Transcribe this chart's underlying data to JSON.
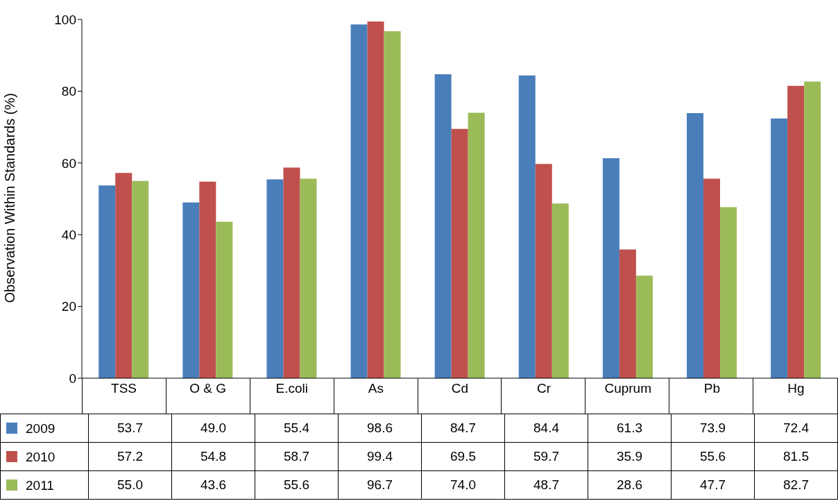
{
  "chart_data": {
    "type": "bar",
    "ylabel": "Observation Within Standards (%)",
    "categories": [
      "TSS",
      "O & G",
      "E.coli",
      "As",
      "Cd",
      "Cr",
      "Cuprum",
      "Pb",
      "Hg"
    ],
    "series": [
      {
        "name": "2009",
        "color": "#4a7ebb",
        "values": [
          53.7,
          49.0,
          55.4,
          98.6,
          84.7,
          84.4,
          61.3,
          73.9,
          72.4
        ],
        "value_labels": [
          "53.7",
          "49.0",
          "55.4",
          "98.6",
          "84.7",
          "84.4",
          "61.3",
          "73.9",
          "72.4"
        ]
      },
      {
        "name": "2010",
        "color": "#c0504d",
        "values": [
          57.2,
          54.8,
          58.7,
          99.4,
          69.5,
          59.7,
          35.9,
          55.6,
          81.5
        ],
        "value_labels": [
          "57.2",
          "54.8",
          "58.7",
          "99.4",
          "69.5",
          "59.7",
          "35.9",
          "55.6",
          "81.5"
        ]
      },
      {
        "name": "2011",
        "color": "#9bbb59",
        "values": [
          55.0,
          43.6,
          55.6,
          96.7,
          74.0,
          48.7,
          28.6,
          47.7,
          82.7
        ],
        "value_labels": [
          "55.0",
          "43.6",
          "55.6",
          "96.7",
          "74.0",
          "48.7",
          "28.6",
          "47.7",
          "82.7"
        ]
      }
    ],
    "ylim": [
      0,
      100
    ],
    "yticks": [
      0,
      20,
      40,
      60,
      80,
      100
    ],
    "grid": false,
    "legend": "bottom left"
  }
}
